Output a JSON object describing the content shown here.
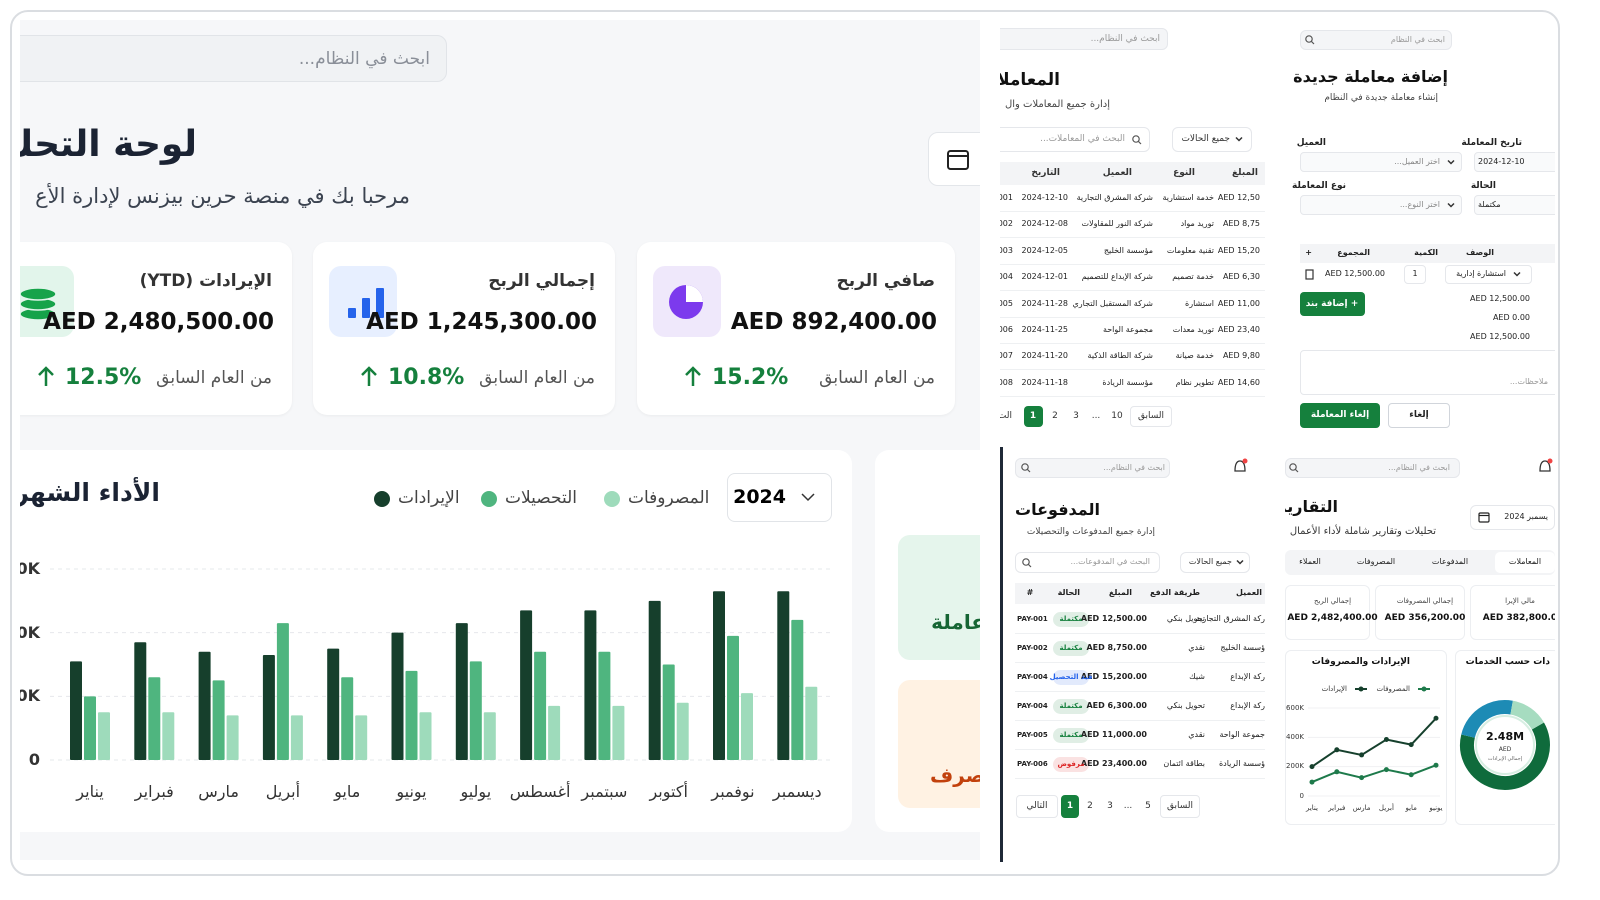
{
  "dashboard": {
    "search_placeholder": "ابحث في النظام...",
    "title": "لوحة التحك",
    "welcome": "مرحبا بك في منصة حرين بيزنس لإدارة الأع",
    "cards": [
      {
        "label": "صافي الربح",
        "value": "AED 892,400.00",
        "change": "15.2%",
        "note": "من العام السابق"
      },
      {
        "label": "إجمالي الربح",
        "value": "AED 1,245,300.00",
        "change": "10.8%",
        "note": "من العام السابق"
      },
      {
        "label": "الإيرادات (YTD)",
        "value": "AED 2,480,500.00",
        "change": "12.5%",
        "note": "من العام السابق"
      }
    ],
    "side_cards": [
      "عاملة",
      "صرف"
    ],
    "monthly_chart": {
      "type": "bar",
      "title": "الأداء الشهر",
      "year": "2024",
      "categories": [
        "يناير",
        "فبراير",
        "مارس",
        "أبريل",
        "مايو",
        "يونيو",
        "يوليو",
        "أغسطس",
        "سبتمبر",
        "أكتوبر",
        "نوفمبر",
        "ديسمبر"
      ],
      "series": [
        {
          "name": "الإيرادات",
          "color": "#163f2c",
          "values": [
            155000,
            185000,
            170000,
            165000,
            175000,
            200000,
            215000,
            235000,
            235000,
            250000,
            265000,
            265000
          ]
        },
        {
          "name": "التحصيلات",
          "color": "#4fb57f",
          "values": [
            100000,
            130000,
            125000,
            215000,
            130000,
            140000,
            155000,
            170000,
            170000,
            150000,
            195000,
            220000
          ]
        },
        {
          "name": "المصروفات",
          "color": "#9edbbb",
          "values": [
            75000,
            75000,
            70000,
            70000,
            70000,
            75000,
            75000,
            85000,
            85000,
            90000,
            105000,
            115000
          ]
        }
      ],
      "ylim": [
        0,
        300000
      ],
      "yticks": [
        0,
        {
          "value": 100000,
          "label": "100K"
        },
        {
          "value": 200000,
          "label": "200K"
        },
        {
          "value": 300000,
          "label": "300K"
        }
      ],
      "grid": true
    }
  },
  "transactions": {
    "search_placeholder": "ابحث في النظام...",
    "title": "المعاملات",
    "subtitle": "إدارة جميع المعاملات وال",
    "table_search": "البحث في المعاملات...",
    "filter": "جميع الحالات",
    "columns": [
      "المبلغ",
      "النوع",
      "العميل",
      "التاريخ"
    ],
    "rows": [
      [
        "AED 12,50",
        "خدمة استشارية",
        "شركة المشرق التجارية",
        "2024-12-10",
        "001"
      ],
      [
        "AED 8,75",
        "توريد مواد",
        "شركة النور للمقاولات",
        "2024-12-08",
        "002"
      ],
      [
        "AED 15,20",
        "تقنية معلومات",
        "مؤسسة الخليج",
        "2024-12-05",
        "003"
      ],
      [
        "AED 6,30",
        "خدمة تصميم",
        "شركة الإبداع للتصميم",
        "2024-12-01",
        "004"
      ],
      [
        "AED 11,00",
        "استشارة",
        "شركة المستقبل التجاري",
        "2024-11-28",
        "005"
      ],
      [
        "AED 23,40",
        "توريد معدات",
        "مجموعة الواحة",
        "2024-11-25",
        "006"
      ],
      [
        "AED 9,80",
        "خدمة صيانة",
        "شركة الطاقة الذكية",
        "2024-11-20",
        "007"
      ],
      [
        "AED 14,60",
        "تطوير نظام",
        "مؤسسة الريادة",
        "2024-11-18",
        "008"
      ]
    ],
    "pagination": [
      "السابق",
      "10",
      "...",
      "3",
      "2",
      "1",
      "الت"
    ]
  },
  "new_transaction": {
    "search_placeholder": "ابحث في النظام",
    "title": "إضافة معاملة جديدة",
    "subtitle": "إنشاء معاملة جديدة في النظام",
    "fields": [
      {
        "label": "تاريخ المعاملة",
        "value": "2024-12-10"
      },
      {
        "label": "العميل",
        "value": "اختر العميل..."
      },
      {
        "label": "الحالة",
        "value": "مكتملة"
      },
      {
        "label": "نوع المعاملة",
        "value": "اختر النوع..."
      }
    ],
    "item_columns": [
      "الوصف",
      "الكمية",
      "المجموع",
      "+"
    ],
    "item_row": [
      "استشارة إدارية",
      "1",
      "AED 12,500.00"
    ],
    "add_item": "+ إضافة بند",
    "totals": [
      "AED 12,500.00",
      "AED 0.00",
      "AED 12,500.00"
    ],
    "notes_placeholder": "ملاحظات...",
    "save": "إلغاء المعاملة",
    "cancel": "إلغاء"
  },
  "payments": {
    "search_placeholder": "ابحث في النظام...",
    "title": "المدفوعات",
    "subtitle": "إدارة جميع المدفوعات والتحصيلات",
    "table_search": "البحث في المدفوعات...",
    "filter": "جميع الحالات",
    "columns": [
      "العميل",
      "طريقة الدفع",
      "المبلغ",
      "الحالة",
      "#"
    ],
    "rows": [
      [
        "ركة المشرق التجارية",
        "تحويل بنكي",
        "AED 12,500.00",
        "مكتملة",
        "PAY-001"
      ],
      [
        "ؤسسة الخليج",
        "نقدي",
        "AED 8,750.00",
        "مكتملة",
        "PAY-002"
      ],
      [
        "ركة الإبداع",
        "شيك",
        "AED 15,200.00",
        "قيد التحصيل",
        "PAY-004"
      ],
      [
        "ركة الإبداع",
        "تحويل بنكي",
        "AED 6,300.00",
        "مكتملة",
        "PAY-004"
      ],
      [
        "جموعة الواحة",
        "نقدي",
        "AED 11,000.00",
        "مكتملة",
        "PAY-005"
      ],
      [
        "ؤسسة الريادة",
        "بطاقة ائتمان",
        "AED 23,400.00",
        "مرفوض",
        "PAY-006"
      ]
    ],
    "status_colors": [
      "#15803d",
      "#15803d",
      "#2563eb",
      "#15803d",
      "#15803d",
      "#dc2626"
    ],
    "pagination": [
      "التالي",
      "1",
      "2",
      "3",
      "...",
      "5",
      "السابق"
    ]
  },
  "reports": {
    "search_placeholder": "ابحث في النظام...",
    "title": "التقارير",
    "subtitle": "تحليلات وتقارير شاملة لأداء الأعمال",
    "period": "يسمبر 2024",
    "tabs": [
      "المعاملات",
      "المدفوعات",
      "المصروفات",
      "العملاء"
    ],
    "kpis": [
      {
        "label": "مالي الإيرا",
        "value": "AED 382,800.0"
      },
      {
        "label": "إجمالي المصروفات",
        "value": "AED 356,200.00"
      },
      {
        "label": "إجمالي الربح",
        "value": "AED 2,482,400.00"
      }
    ],
    "line_chart": {
      "type": "line",
      "title": "الإيرادات والمصروفات",
      "categories": [
        "يناير",
        "فبراير",
        "مارس",
        "أبريل",
        "مايو",
        "يونيو"
      ],
      "series": [
        {
          "name": "المصروفات",
          "color": "#1e7a4b",
          "values": [
            95000,
            165000,
            125000,
            180000,
            145000,
            210000
          ]
        },
        {
          "name": "الإيرادات",
          "color": "#16402d",
          "values": [
            200000,
            315000,
            280000,
            385000,
            350000,
            530000
          ]
        }
      ],
      "ylim": [
        0,
        600000
      ],
      "yticks": [
        0,
        {
          "value": 200000,
          "label": "200K"
        },
        {
          "value": 400000,
          "label": "400K"
        },
        {
          "value": 600000,
          "label": "600K"
        }
      ]
    },
    "donut": {
      "type": "pie",
      "title": "دات حسب الخدمات",
      "total": "2.48M",
      "unit": "AED",
      "total_label": "إجمالي الإيرادات",
      "values": [
        62,
        24,
        14
      ],
      "colors": [
        "#0f6b3c",
        "#1d8bb5",
        "#a6dcc0"
      ]
    }
  }
}
